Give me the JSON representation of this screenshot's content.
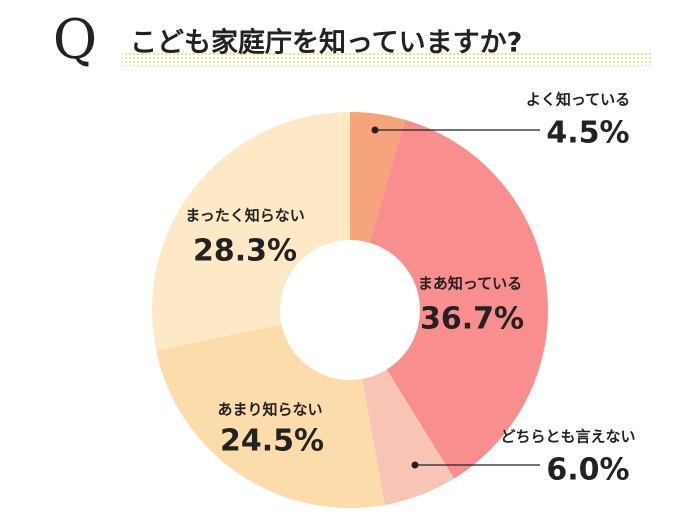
{
  "chart_data": {
    "type": "donut",
    "question": "Q",
    "title": "こども家庭庁を知っていますか?",
    "categories": [
      "よく知っている",
      "まあ知っている",
      "どちらとも言えない",
      "あまり知らない",
      "まったく知らない"
    ],
    "values": [
      4.5,
      36.7,
      6.0,
      24.5,
      28.3
    ],
    "value_labels": [
      "4.5%",
      "36.7%",
      "6.0%",
      "24.5%",
      "28.3%"
    ],
    "colors": [
      "#f5a47c",
      "#f98e8e",
      "#f7c4b6",
      "#fcdcab",
      "#fde9c6"
    ]
  }
}
